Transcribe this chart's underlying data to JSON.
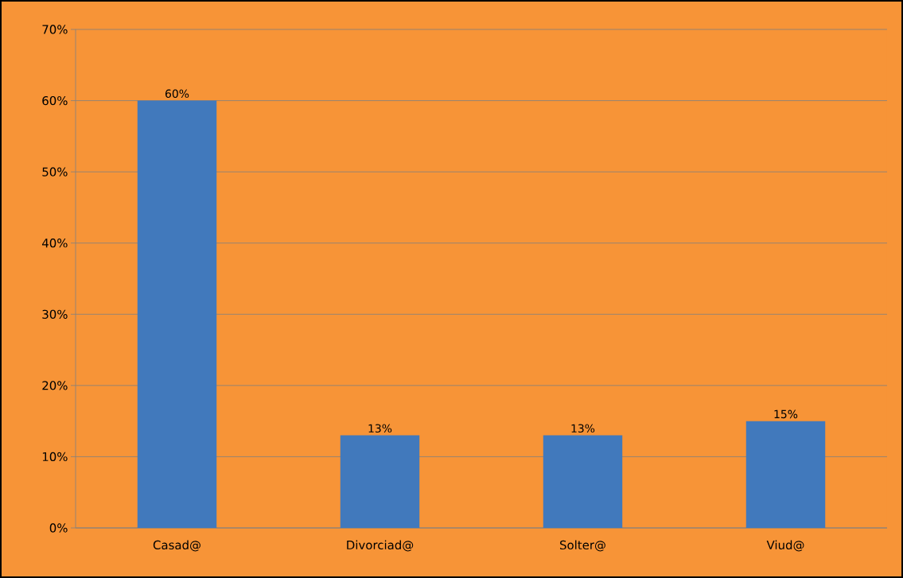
{
  "chart_data": {
    "type": "bar",
    "categories": [
      "Casad@",
      "Divorciad@",
      "Solter@",
      "Viud@"
    ],
    "values": [
      60,
      13,
      13,
      15
    ],
    "value_labels": [
      "60%",
      "13%",
      "13%",
      "15%"
    ],
    "color": "#4179bc",
    "ylim": [
      0,
      70
    ],
    "yticks": [
      {
        "value": 0,
        "label": "0%"
      },
      {
        "value": 10,
        "label": "10%"
      },
      {
        "value": 20,
        "label": "20%"
      },
      {
        "value": 30,
        "label": "30%"
      },
      {
        "value": 40,
        "label": "40%"
      },
      {
        "value": 50,
        "label": "50%"
      },
      {
        "value": 60,
        "label": "60%"
      },
      {
        "value": 70,
        "label": "70%"
      }
    ],
    "grid": "y"
  }
}
